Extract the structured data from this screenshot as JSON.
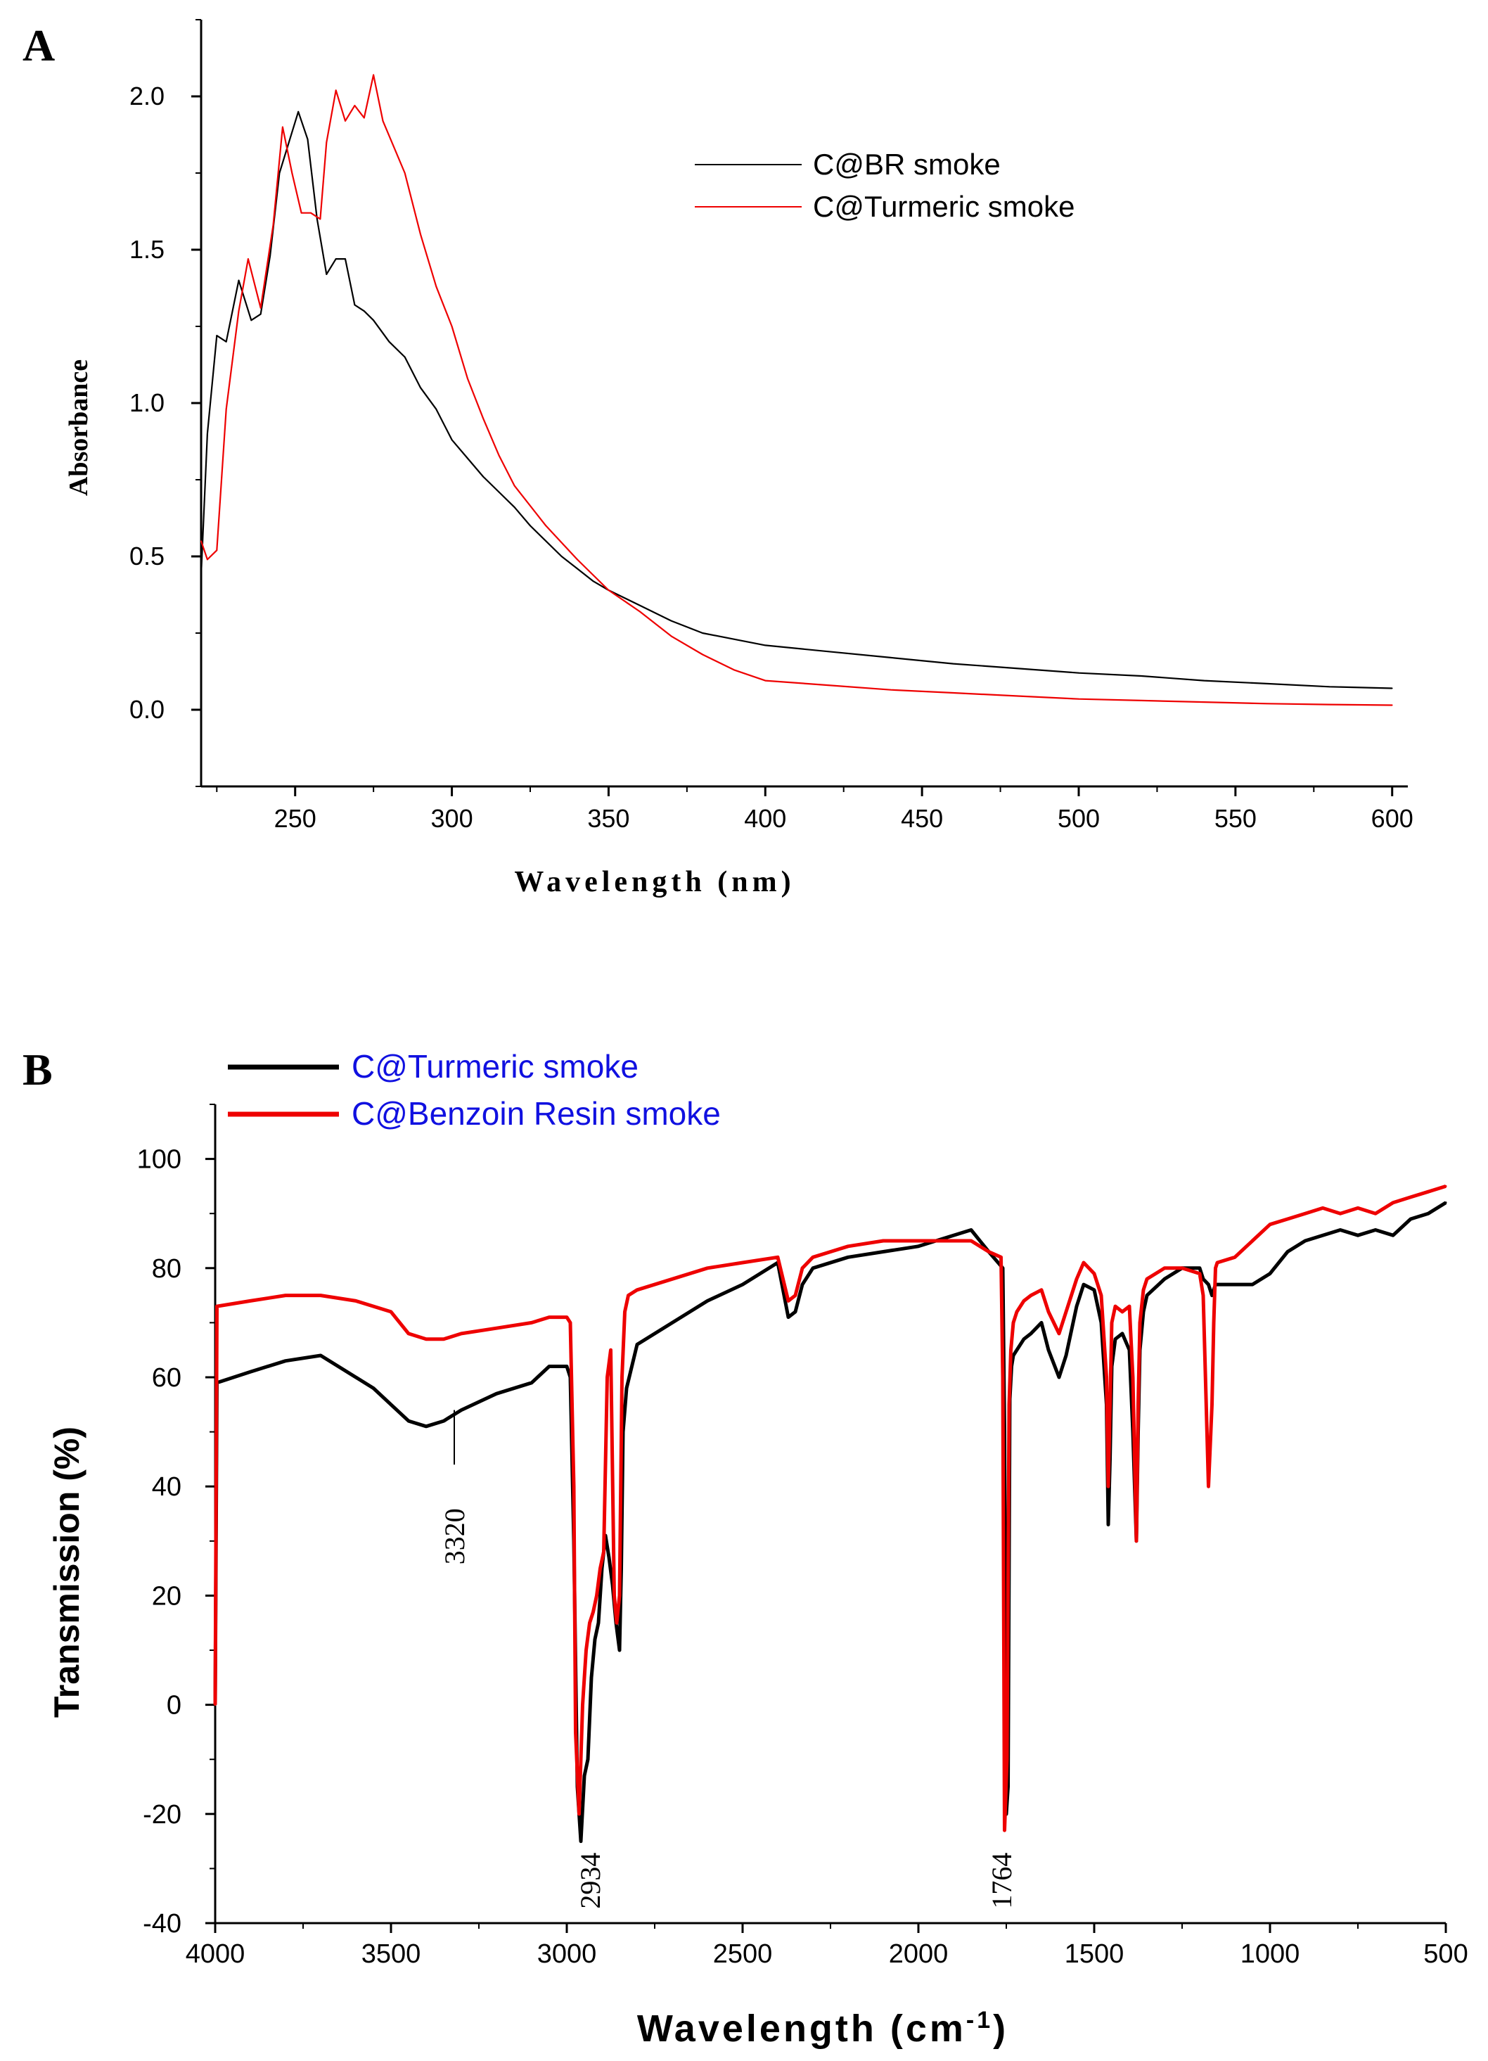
{
  "colors": {
    "black": "#000000",
    "red": "#ee0000",
    "blue": "#1010e0"
  },
  "chart_data": [
    {
      "panel_label": "A",
      "type": "line",
      "title": "",
      "xlabel": "Wavelength (nm)",
      "ylabel": "Absorbance",
      "xlim": [
        220,
        605
      ],
      "ylim": [
        -0.25,
        2.25
      ],
      "xticks": [
        250,
        300,
        350,
        400,
        450,
        500,
        550,
        600
      ],
      "yticks": [
        0.0,
        0.5,
        1.0,
        1.5,
        2.0
      ],
      "ytick_labels": [
        "0.0",
        "0.5",
        "1.0",
        "1.5",
        "2.0"
      ],
      "grid": false,
      "legend_position": "top-right",
      "series": [
        {
          "name": "C@BR smoke",
          "color": "#000000",
          "x": [
            220,
            222,
            225,
            228,
            232,
            236,
            239,
            242,
            245,
            248,
            251,
            254,
            257,
            260,
            263,
            266,
            269,
            272,
            275,
            280,
            285,
            290,
            295,
            300,
            305,
            310,
            315,
            320,
            325,
            330,
            335,
            340,
            345,
            350,
            360,
            370,
            380,
            390,
            400,
            420,
            440,
            460,
            480,
            500,
            520,
            540,
            560,
            580,
            600
          ],
          "values": [
            0.44,
            0.9,
            1.22,
            1.2,
            1.4,
            1.27,
            1.29,
            1.48,
            1.75,
            1.85,
            1.95,
            1.86,
            1.6,
            1.42,
            1.47,
            1.47,
            1.32,
            1.3,
            1.27,
            1.2,
            1.15,
            1.05,
            0.98,
            0.88,
            0.82,
            0.76,
            0.71,
            0.66,
            0.6,
            0.55,
            0.5,
            0.46,
            0.42,
            0.39,
            0.34,
            0.29,
            0.25,
            0.23,
            0.21,
            0.19,
            0.17,
            0.15,
            0.135,
            0.12,
            0.11,
            0.095,
            0.085,
            0.075,
            0.07
          ]
        },
        {
          "name": "C@Turmeric smoke",
          "color": "#ee0000",
          "x": [
            220,
            222,
            225,
            228,
            232,
            235,
            239,
            243,
            246,
            249,
            252,
            255,
            258,
            260,
            263,
            266,
            269,
            272,
            275,
            278,
            285,
            290,
            295,
            300,
            305,
            310,
            315,
            320,
            330,
            340,
            350,
            360,
            370,
            380,
            390,
            400,
            420,
            440,
            460,
            480,
            500,
            520,
            540,
            560,
            580,
            600
          ],
          "values": [
            0.55,
            0.49,
            0.52,
            0.98,
            1.3,
            1.47,
            1.31,
            1.58,
            1.9,
            1.75,
            1.62,
            1.62,
            1.6,
            1.85,
            2.02,
            1.92,
            1.97,
            1.93,
            2.07,
            1.92,
            1.75,
            1.55,
            1.38,
            1.25,
            1.08,
            0.95,
            0.83,
            0.73,
            0.6,
            0.49,
            0.39,
            0.32,
            0.24,
            0.18,
            0.13,
            0.095,
            0.08,
            0.065,
            0.055,
            0.045,
            0.035,
            0.03,
            0.025,
            0.02,
            0.017,
            0.015
          ]
        }
      ]
    },
    {
      "panel_label": "B",
      "type": "line",
      "title": "",
      "xlabel": "Wavelength (cm",
      "xlabel_sup": "-1",
      "xlabel_end": ")",
      "ylabel": "Transmission (%)",
      "xlim": [
        4000,
        500
      ],
      "ylim": [
        -40,
        110
      ],
      "xticks": [
        4000,
        3500,
        3000,
        2500,
        2000,
        1500,
        1000,
        500
      ],
      "yticks": [
        -40,
        -20,
        0,
        20,
        40,
        60,
        80,
        100
      ],
      "grid": false,
      "legend_position": "top-left",
      "annotations": [
        {
          "text": "3320",
          "x": 3320,
          "y": 44
        },
        {
          "text": "2934",
          "x": 2934,
          "y": -20
        },
        {
          "text": "1764",
          "x": 1764,
          "y": -20
        }
      ],
      "series": [
        {
          "name": "C@Turmeric smoke",
          "color": "#000000",
          "x": [
            4000,
            3995,
            3900,
            3800,
            3700,
            3650,
            3600,
            3550,
            3500,
            3450,
            3400,
            3350,
            3300,
            3200,
            3100,
            3050,
            3000,
            2990,
            2980,
            2970,
            2960,
            2950,
            2940,
            2930,
            2920,
            2910,
            2900,
            2890,
            2880,
            2870,
            2860,
            2850,
            2845,
            2840,
            2830,
            2800,
            2700,
            2600,
            2500,
            2400,
            2370,
            2350,
            2330,
            2300,
            2200,
            2100,
            2000,
            1900,
            1850,
            1800,
            1760,
            1755,
            1750,
            1745,
            1740,
            1735,
            1730,
            1720,
            1700,
            1680,
            1650,
            1630,
            1600,
            1580,
            1550,
            1530,
            1500,
            1480,
            1465,
            1460,
            1455,
            1450,
            1440,
            1420,
            1400,
            1390,
            1380,
            1375,
            1370,
            1360,
            1350,
            1300,
            1250,
            1200,
            1190,
            1175,
            1165,
            1160,
            1155,
            1150,
            1100,
            1050,
            1000,
            950,
            900,
            850,
            800,
            750,
            700,
            650,
            600,
            550,
            500
          ],
          "values": [
            0,
            59,
            61,
            63,
            64,
            62,
            60,
            58,
            55,
            52,
            51,
            52,
            54,
            57,
            59,
            62,
            62,
            60,
            30,
            -15,
            -25,
            -13,
            -10,
            5,
            12,
            15,
            25,
            31,
            27,
            22,
            15,
            10,
            25,
            50,
            58,
            66,
            70,
            74,
            77,
            81,
            71,
            72,
            77,
            80,
            82,
            83,
            84,
            86,
            87,
            83,
            80,
            50,
            -20,
            -15,
            56,
            62,
            64,
            65,
            67,
            68,
            70,
            65,
            60,
            64,
            73,
            77,
            76,
            70,
            55,
            33,
            45,
            62,
            67,
            68,
            65,
            50,
            30,
            50,
            65,
            72,
            75,
            78,
            80,
            80,
            78,
            77,
            75,
            76,
            77,
            77,
            77,
            77,
            79,
            83,
            85,
            86,
            87,
            86,
            87,
            86,
            89,
            90,
            92
          ]
        },
        {
          "name": "C@Benzoin Resin smoke",
          "color": "#ee0000",
          "x": [
            4000,
            3995,
            3900,
            3800,
            3700,
            3600,
            3500,
            3450,
            3400,
            3350,
            3300,
            3200,
            3100,
            3050,
            3000,
            2990,
            2980,
            2975,
            2965,
            2955,
            2945,
            2935,
            2925,
            2915,
            2905,
            2895,
            2885,
            2875,
            2865,
            2858,
            2850,
            2843,
            2835,
            2825,
            2800,
            2700,
            2600,
            2500,
            2400,
            2370,
            2350,
            2330,
            2300,
            2200,
            2100,
            2000,
            1900,
            1850,
            1800,
            1765,
            1760,
            1755,
            1748,
            1742,
            1737,
            1730,
            1720,
            1700,
            1680,
            1650,
            1630,
            1600,
            1580,
            1550,
            1530,
            1500,
            1480,
            1465,
            1460,
            1455,
            1450,
            1440,
            1420,
            1400,
            1390,
            1380,
            1375,
            1370,
            1360,
            1350,
            1300,
            1250,
            1200,
            1190,
            1175,
            1165,
            1160,
            1155,
            1150,
            1100,
            1050,
            1000,
            950,
            900,
            850,
            800,
            750,
            700,
            650,
            600,
            550,
            500
          ],
          "values": [
            0,
            73,
            74,
            75,
            75,
            74,
            72,
            68,
            67,
            67,
            68,
            69,
            70,
            71,
            71,
            70,
            40,
            -5,
            -20,
            0,
            10,
            15,
            17,
            20,
            25,
            28,
            60,
            65,
            20,
            15,
            20,
            60,
            72,
            75,
            76,
            78,
            80,
            81,
            82,
            74,
            75,
            80,
            82,
            84,
            85,
            85,
            85,
            85,
            83,
            82,
            60,
            -23,
            -10,
            55,
            65,
            70,
            72,
            74,
            75,
            76,
            72,
            68,
            72,
            78,
            81,
            79,
            75,
            60,
            40,
            55,
            70,
            73,
            72,
            73,
            60,
            30,
            55,
            70,
            76,
            78,
            80,
            80,
            79,
            75,
            40,
            55,
            70,
            80,
            81,
            82,
            85,
            88,
            89,
            90,
            91,
            90,
            91,
            90,
            92,
            93,
            94,
            95
          ]
        }
      ]
    }
  ]
}
